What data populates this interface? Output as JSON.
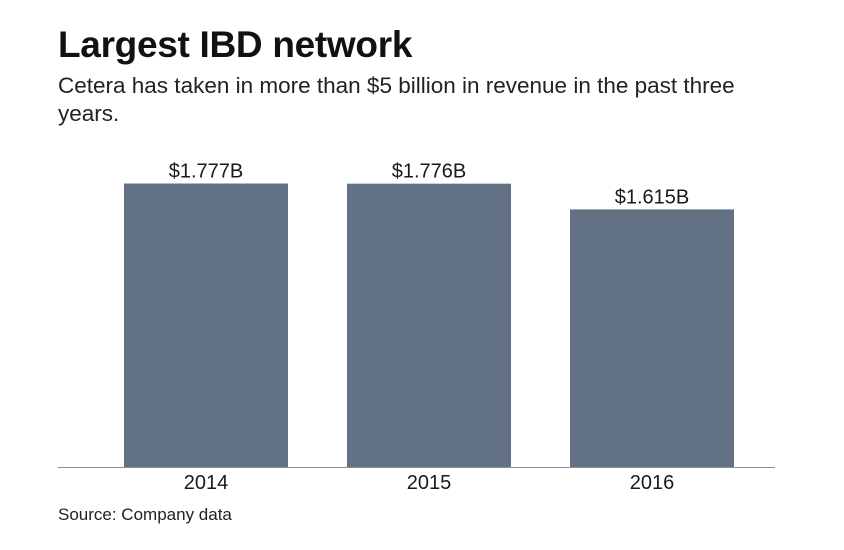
{
  "header": {
    "title": "Largest IBD network",
    "subtitle": "Cetera has taken in more than $5 billion in revenue in the past three years."
  },
  "footer": {
    "source": "Source: Company data"
  },
  "colors": {
    "bar": "#637184",
    "axis": "#8a8f96",
    "text": "#1a1a1a"
  },
  "chart_data": {
    "type": "bar",
    "title": "Largest IBD network",
    "subtitle": "Cetera has taken in more than $5 billion in revenue in the past three years.",
    "categories": [
      "2014",
      "2015",
      "2016"
    ],
    "values": [
      1.777,
      1.776,
      1.615
    ],
    "data_labels": [
      "$1.777B",
      "$1.776B",
      "$1.615B"
    ],
    "units": "billions USD",
    "xlabel": "",
    "ylabel": "",
    "ylim": [
      0,
      2.1
    ],
    "grid": false,
    "legend": "none"
  }
}
